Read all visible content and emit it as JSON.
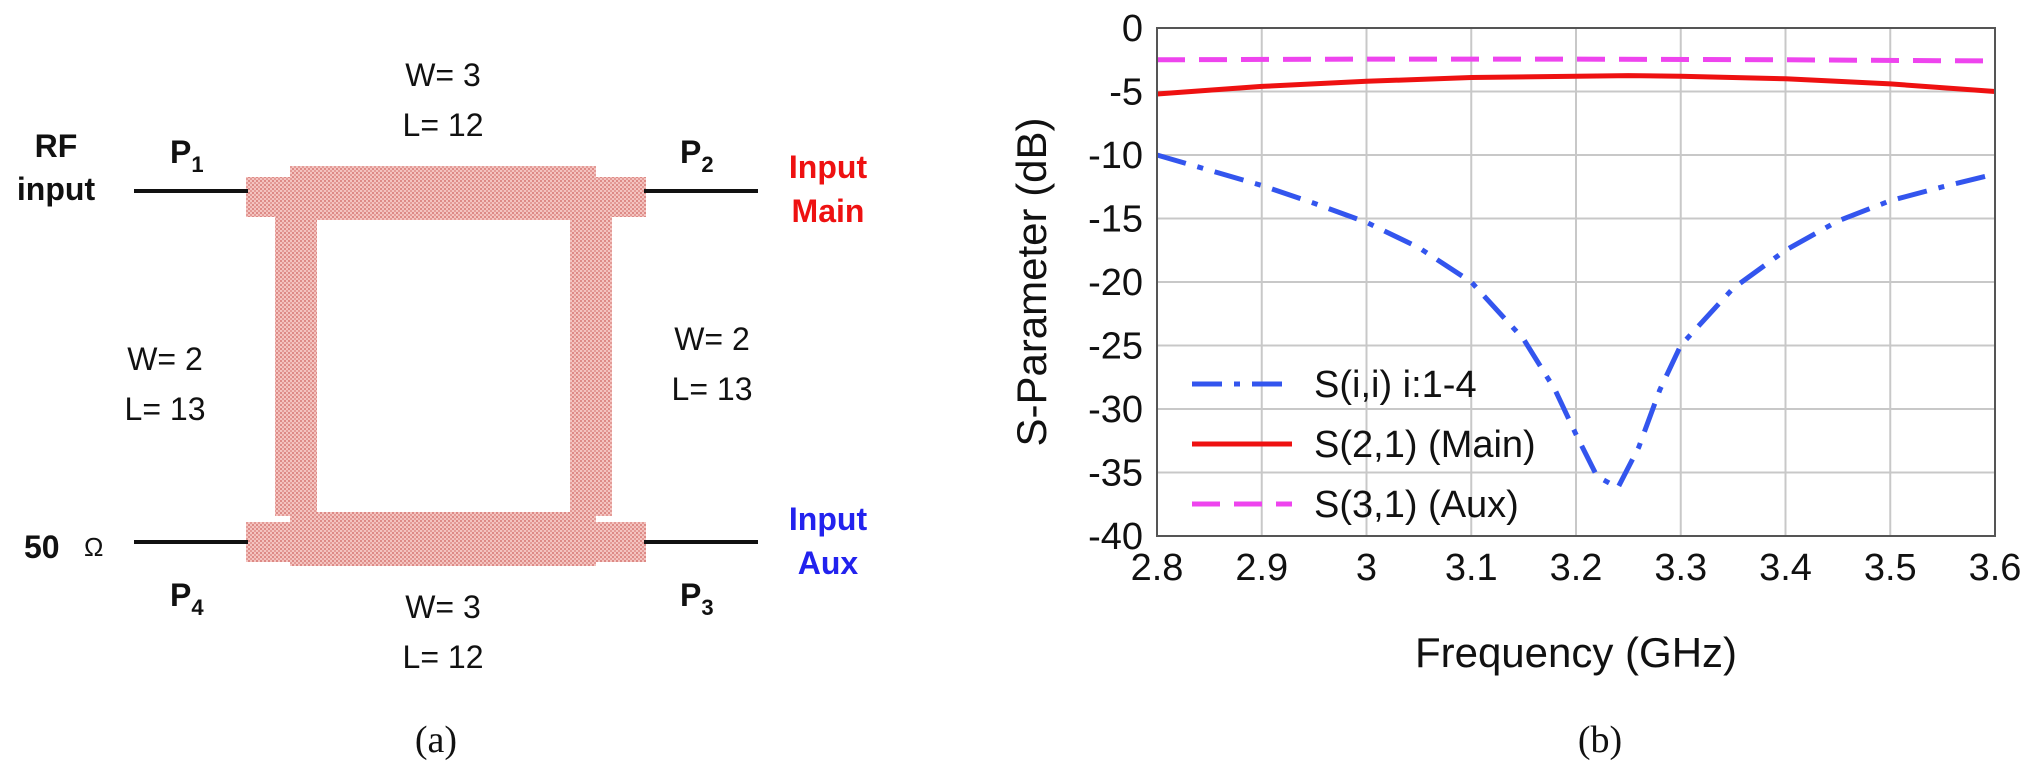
{
  "panel_a": {
    "caption": "(a)",
    "ports": {
      "p1": {
        "letter": "P",
        "sub": "1"
      },
      "p2": {
        "letter": "P",
        "sub": "2"
      },
      "p3": {
        "letter": "P",
        "sub": "3"
      },
      "p4": {
        "letter": "P",
        "sub": "4"
      }
    },
    "rf_input": {
      "line1": "RF",
      "line2": "input"
    },
    "termination": {
      "value": "50",
      "unit": "Ω"
    },
    "input_main": {
      "line1": "Input",
      "line2": "Main",
      "color": "#ee1111"
    },
    "input_aux": {
      "line1": "Input",
      "line2": "Aux",
      "color": "#2222ee"
    },
    "top_arm": {
      "w": "W= 3",
      "l": "L= 12"
    },
    "bottom_arm": {
      "w": "W= 3",
      "l": "L= 12"
    },
    "left_arm": {
      "w": "W= 2",
      "l": "L= 13"
    },
    "right_arm": {
      "w": "W= 2",
      "l": "L= 13"
    },
    "trace_color": "#e89c98"
  },
  "panel_b": {
    "caption": "(b)"
  },
  "chart_data": {
    "type": "line",
    "xlabel": "Frequency (GHz)",
    "ylabel": "S-Parameter (dB)",
    "xlim": [
      2.8,
      3.6
    ],
    "ylim": [
      -40,
      0
    ],
    "xticks": [
      "2.8",
      "2.9",
      "3",
      "3.1",
      "3.2",
      "3.3",
      "3.4",
      "3.5",
      "3.6"
    ],
    "yticks": [
      "0",
      "-5",
      "-10",
      "-15",
      "-20",
      "-25",
      "-30",
      "-35",
      "-40"
    ],
    "grid": true,
    "legend_position": "bottom-left",
    "series": [
      {
        "name": "S(i,i) i:1-4",
        "color": "#3355ee",
        "style": "dash-dot",
        "x": [
          2.8,
          2.85,
          2.9,
          2.95,
          3.0,
          3.05,
          3.1,
          3.15,
          3.18,
          3.2,
          3.22,
          3.24,
          3.26,
          3.28,
          3.3,
          3.35,
          3.4,
          3.45,
          3.5,
          3.55,
          3.6
        ],
        "y": [
          -10.0,
          -11.2,
          -12.4,
          -13.8,
          -15.3,
          -17.3,
          -20.0,
          -24.5,
          -28.5,
          -32.0,
          -35.3,
          -36.2,
          -33.0,
          -28.5,
          -25.0,
          -20.5,
          -17.5,
          -15.2,
          -13.6,
          -12.5,
          -11.5
        ]
      },
      {
        "name": "S(2,1) (Main)",
        "color": "#ee1111",
        "style": "solid",
        "x": [
          2.8,
          2.9,
          3.0,
          3.1,
          3.2,
          3.25,
          3.3,
          3.4,
          3.5,
          3.6
        ],
        "y": [
          -5.2,
          -4.6,
          -4.2,
          -3.9,
          -3.8,
          -3.75,
          -3.8,
          -4.0,
          -4.4,
          -5.0
        ]
      },
      {
        "name": "S(3,1) (Aux)",
        "color": "#ee44ee",
        "style": "dashed",
        "x": [
          2.8,
          3.0,
          3.2,
          3.4,
          3.6
        ],
        "y": [
          -2.5,
          -2.45,
          -2.45,
          -2.5,
          -2.6
        ]
      }
    ]
  }
}
